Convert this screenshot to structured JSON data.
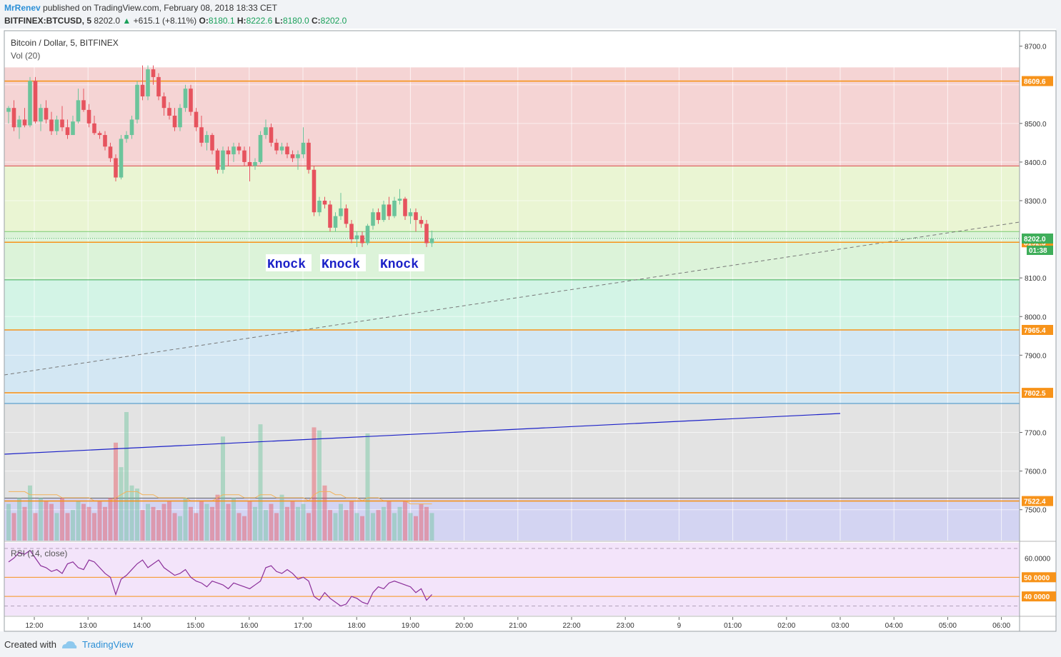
{
  "header": {
    "author": "MrRenev",
    "published_text": "published on TradingView.com, February 08, 2018 18:33 CET",
    "symbol": "BITFINEX:BTCUSD, 5",
    "last": "8202.0",
    "change_arrow": "▲",
    "change": "+615.1 (+8.11%)",
    "o_label": "O:",
    "o": "8180.1",
    "h_label": "H:",
    "h": "8222.6",
    "l_label": "L:",
    "l": "8180.0",
    "c_label": "C:",
    "c": "8202.0"
  },
  "legend": {
    "series_title": "Bitcoin / Dollar, 5, BITFINEX",
    "vol_title": "Vol (20)",
    "rsi_title": "RSI (14, close)"
  },
  "footer": {
    "created_with": "Created with",
    "brand": "TradingView"
  },
  "colors": {
    "up": "#6bc49b",
    "down": "#e6535e",
    "orange": "#f7931a",
    "zone_red": "#f5d4d4",
    "zone_yellow": "#eaf5d3",
    "zone_green1": "#dcf3d9",
    "zone_green2": "#d3f4e6",
    "zone_blue": "#d3e7f3",
    "zone_gray": "#e3e3e3",
    "zone_violet": "#d3d4f2",
    "rsi_bg": "#f3e4fa",
    "rsi_line": "#8b2f9a",
    "trend_blue": "#1d22c8"
  },
  "chart_data": [
    {
      "type": "candlestick",
      "title": "Bitcoin / Dollar, 5, BITFINEX",
      "ylim": [
        7420,
        8740
      ],
      "y_ticks": [
        7500,
        7600,
        7700,
        7800,
        7900,
        8000,
        8100,
        8200,
        8300,
        8400,
        8500,
        8600,
        8700
      ],
      "y_tick_labels": [
        "7500.0",
        "7600.0",
        "7700.0",
        "",
        "7900.0",
        "8000.0",
        "8100.0",
        "",
        "8300.0",
        "8400.0",
        "8500.0",
        "",
        "8700.0"
      ],
      "x_tick_labels": [
        "12:00",
        "13:00",
        "14:00",
        "15:00",
        "16:00",
        "17:00",
        "18:00",
        "19:00",
        "20:00",
        "21:00",
        "22:00",
        "23:00",
        "9",
        "01:00",
        "02:00",
        "03:00",
        "04:00",
        "05:00",
        "06:00"
      ],
      "bar_interval_minutes": 5,
      "candles_ohlc": [
        [
          8530,
          8545,
          8500,
          8540
        ],
        [
          8540,
          8560,
          8480,
          8490
        ],
        [
          8490,
          8520,
          8460,
          8510
        ],
        [
          8510,
          8540,
          8490,
          8495
        ],
        [
          8495,
          8620,
          8490,
          8610
        ],
        [
          8610,
          8620,
          8500,
          8505
        ],
        [
          8505,
          8550,
          8480,
          8540
        ],
        [
          8540,
          8560,
          8500,
          8510
        ],
        [
          8510,
          8530,
          8470,
          8480
        ],
        [
          8480,
          8520,
          8470,
          8510
        ],
        [
          8510,
          8545,
          8480,
          8490
        ],
        [
          8490,
          8510,
          8460,
          8470
        ],
        [
          8470,
          8520,
          8470,
          8505
        ],
        [
          8505,
          8590,
          8500,
          8560
        ],
        [
          8560,
          8590,
          8530,
          8535
        ],
        [
          8535,
          8550,
          8490,
          8500
        ],
        [
          8500,
          8520,
          8470,
          8475
        ],
        [
          8475,
          8480,
          8460,
          8470
        ],
        [
          8470,
          8480,
          8430,
          8440
        ],
        [
          8440,
          8450,
          8400,
          8410
        ],
        [
          8410,
          8420,
          8350,
          8360
        ],
        [
          8360,
          8470,
          8355,
          8460
        ],
        [
          8460,
          8480,
          8450,
          8470
        ],
        [
          8470,
          8520,
          8460,
          8510
        ],
        [
          8510,
          8610,
          8500,
          8600
        ],
        [
          8600,
          8650,
          8560,
          8570
        ],
        [
          8570,
          8650,
          8560,
          8640
        ],
        [
          8640,
          8650,
          8600,
          8620
        ],
        [
          8620,
          8630,
          8560,
          8570
        ],
        [
          8570,
          8580,
          8520,
          8540
        ],
        [
          8540,
          8555,
          8510,
          8520
        ],
        [
          8520,
          8540,
          8480,
          8490
        ],
        [
          8490,
          8550,
          8480,
          8540
        ],
        [
          8540,
          8600,
          8530,
          8590
        ],
        [
          8590,
          8600,
          8520,
          8530
        ],
        [
          8530,
          8540,
          8480,
          8490
        ],
        [
          8490,
          8520,
          8440,
          8450
        ],
        [
          8450,
          8480,
          8430,
          8470
        ],
        [
          8470,
          8475,
          8420,
          8430
        ],
        [
          8430,
          8435,
          8370,
          8380
        ],
        [
          8380,
          8440,
          8370,
          8430
        ],
        [
          8430,
          8440,
          8390,
          8420
        ],
        [
          8420,
          8450,
          8400,
          8440
        ],
        [
          8440,
          8450,
          8420,
          8430
        ],
        [
          8430,
          8440,
          8390,
          8400
        ],
        [
          8400,
          8440,
          8350,
          8390
        ],
        [
          8390,
          8410,
          8380,
          8400
        ],
        [
          8400,
          8480,
          8395,
          8470
        ],
        [
          8470,
          8510,
          8460,
          8490
        ],
        [
          8490,
          8500,
          8440,
          8450
        ],
        [
          8450,
          8460,
          8420,
          8430
        ],
        [
          8430,
          8450,
          8420,
          8440
        ],
        [
          8440,
          8450,
          8410,
          8420
        ],
        [
          8420,
          8430,
          8400,
          8410
        ],
        [
          8410,
          8430,
          8380,
          8420
        ],
        [
          8420,
          8490,
          8410,
          8450
        ],
        [
          8450,
          8460,
          8370,
          8380
        ],
        [
          8380,
          8390,
          8260,
          8270
        ],
        [
          8270,
          8310,
          8260,
          8300
        ],
        [
          8300,
          8310,
          8280,
          8290
        ],
        [
          8290,
          8300,
          8220,
          8230
        ],
        [
          8230,
          8270,
          8220,
          8260
        ],
        [
          8260,
          8320,
          8250,
          8280
        ],
        [
          8280,
          8290,
          8230,
          8240
        ],
        [
          8240,
          8250,
          8190,
          8200
        ],
        [
          8200,
          8220,
          8180,
          8210
        ],
        [
          8210,
          8220,
          8180,
          8190
        ],
        [
          8190,
          8240,
          8185,
          8235
        ],
        [
          8235,
          8280,
          8225,
          8270
        ],
        [
          8270,
          8280,
          8240,
          8250
        ],
        [
          8250,
          8300,
          8245,
          8290
        ],
        [
          8290,
          8310,
          8250,
          8260
        ],
        [
          8260,
          8310,
          8255,
          8300
        ],
        [
          8300,
          8330,
          8290,
          8305
        ],
        [
          8305,
          8310,
          8250,
          8260
        ],
        [
          8260,
          8280,
          8240,
          8270
        ],
        [
          8270,
          8280,
          8220,
          8250
        ],
        [
          8250,
          8260,
          8230,
          8240
        ],
        [
          8240,
          8250,
          8180,
          8190
        ],
        [
          8190,
          8222.6,
          8180,
          8202
        ]
      ],
      "horizontal_levels": [
        {
          "price": 8609.6,
          "label": "8609.6"
        },
        {
          "price": 8192.3,
          "label": "8192.3"
        },
        {
          "price": 7965.4,
          "label": "7965.4"
        },
        {
          "price": 7802.5,
          "label": "7802.5"
        },
        {
          "price": 7522.4,
          "label": "7522.4"
        }
      ],
      "last_price": {
        "price": 8202.0,
        "label": "8202.0",
        "countdown": "01:38"
      },
      "zones": [
        {
          "from": 8390,
          "to": 8645,
          "color": "#f5d4d4"
        },
        {
          "from": 8220,
          "to": 8390,
          "color": "#eaf5d3"
        },
        {
          "from": 8095,
          "to": 8220,
          "color": "#dcf3d9"
        },
        {
          "from": 7965,
          "to": 8095,
          "color": "#d3f4e6"
        },
        {
          "from": 7775,
          "to": 7965,
          "color": "#d3e7f3"
        },
        {
          "from": 7530,
          "to": 7775,
          "color": "#e3e3e3"
        },
        {
          "from": 7420,
          "to": 7530,
          "color": "#d3d4f2"
        }
      ],
      "annotations": [
        "Knock",
        "Knock",
        "Knock"
      ]
    },
    {
      "type": "bar",
      "title": "Vol (20)",
      "values": [
        12,
        9,
        14,
        11,
        18,
        9,
        14,
        13,
        12,
        9,
        14,
        9,
        10,
        13,
        12,
        11,
        9,
        13,
        11,
        14,
        32,
        24,
        42,
        18,
        17,
        10,
        12,
        11,
        10,
        12,
        13,
        9,
        8,
        14,
        11,
        9,
        13,
        12,
        11,
        15,
        34,
        12,
        14,
        9,
        8,
        13,
        11,
        38,
        10,
        12,
        9,
        15,
        11,
        13,
        11,
        12,
        9,
        37,
        36,
        18,
        10,
        9,
        12,
        10,
        13,
        9,
        8,
        35,
        9,
        10,
        11,
        13,
        9,
        11,
        13,
        9,
        8,
        12,
        11,
        9
      ],
      "ma_values": [
        16,
        16,
        16,
        16,
        15,
        15,
        15,
        15,
        15,
        15,
        14,
        14,
        14,
        14,
        14,
        14,
        13,
        13,
        13,
        13,
        14,
        15,
        16,
        16,
        16,
        15,
        15,
        15,
        14,
        14,
        14,
        14,
        14,
        14,
        13,
        13,
        13,
        13,
        13,
        14,
        15,
        15,
        15,
        15,
        14,
        14,
        14,
        15,
        15,
        15,
        14,
        14,
        14,
        14,
        14,
        14,
        13,
        15,
        16,
        16,
        16,
        15,
        15,
        14,
        14,
        14,
        13,
        14,
        14,
        14,
        13,
        13,
        13,
        13,
        13,
        12,
        12,
        12,
        12,
        12
      ]
    },
    {
      "type": "line",
      "title": "RSI (14, close)",
      "ylim": [
        30,
        68
      ],
      "y_ticks": [
        60,
        50,
        40
      ],
      "y_tick_labels": [
        "60.0000",
        "50 0000",
        "40 0000"
      ],
      "bands": [
        65,
        35
      ],
      "values": [
        58,
        60,
        63,
        62,
        64,
        60,
        56,
        55,
        53,
        54,
        52,
        57,
        58,
        55,
        54,
        59,
        58,
        55,
        52,
        50,
        41,
        49,
        51,
        54,
        57,
        59,
        55,
        57,
        59,
        55,
        53,
        51,
        52,
        54,
        50,
        48,
        47,
        45,
        48,
        47,
        46,
        44,
        47,
        46,
        45,
        44,
        46,
        48,
        55,
        56,
        53,
        52,
        54,
        52,
        49,
        50,
        48,
        40,
        38,
        42,
        39,
        37,
        35,
        36,
        40,
        39,
        37,
        36,
        42,
        45,
        44,
        47,
        48,
        47,
        46,
        45,
        42,
        44,
        38,
        41
      ]
    }
  ]
}
